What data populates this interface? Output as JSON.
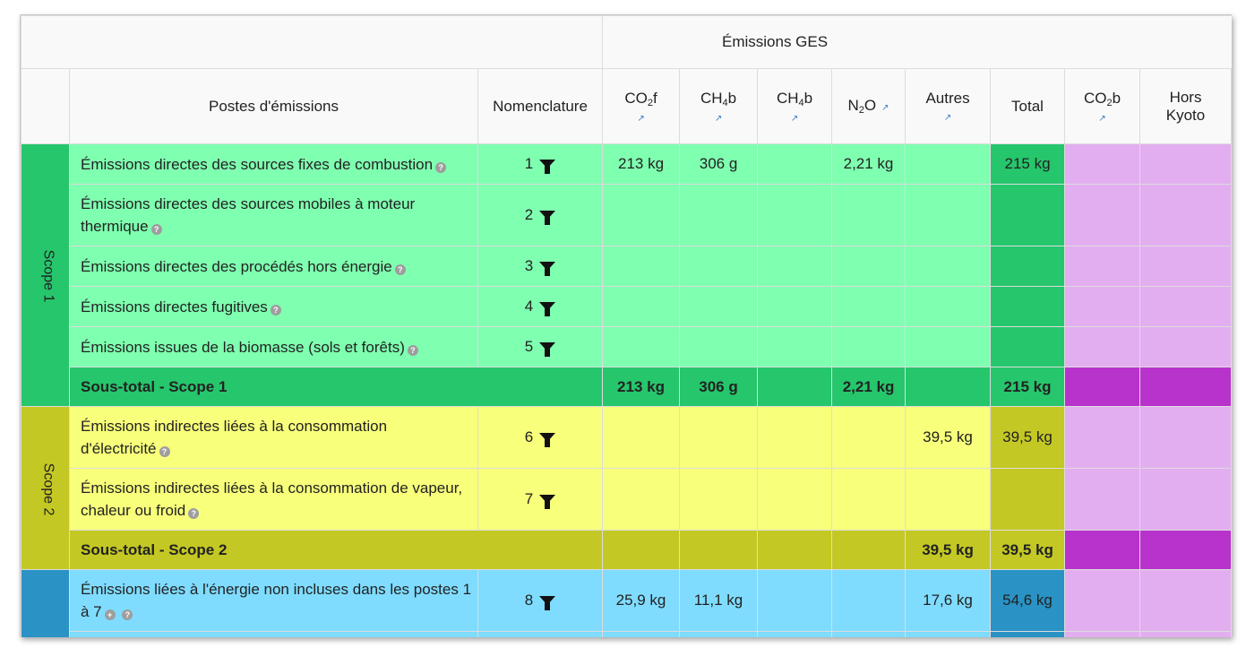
{
  "header": {
    "group_title": "Émissions GES",
    "col_postes": "Postes d'émissions",
    "col_nomenclature": "Nomenclature",
    "col_co2f": "CO",
    "col_co2f_sub": "2",
    "col_co2f_suffix": "f",
    "col_ch4b_a": "CH",
    "col_ch4b_a_sub": "4",
    "col_ch4b_a_suffix": "b",
    "col_ch4b_b": "CH",
    "col_ch4b_b_sub": "4",
    "col_ch4b_b_suffix": "b",
    "col_n2o": "N",
    "col_n2o_sub": "2",
    "col_n2o_suffix": "O",
    "col_autres": "Autres",
    "col_total": "Total",
    "col_co2b": "CO",
    "col_co2b_sub": "2",
    "col_co2b_suffix": "b",
    "col_hors_kyoto_1": "Hors",
    "col_hors_kyoto_2": "Kyoto",
    "ext_icon": "external-link-icon"
  },
  "scopes": {
    "scope1": "Scope 1",
    "scope2": "Scope 2"
  },
  "rows": [
    {
      "label": "Émissions directes des sources fixes de combustion",
      "num": "1",
      "co2f": "213 kg",
      "ch4b": "306 g",
      "n2o": "2,21 kg",
      "autres": "",
      "total": "215 kg"
    },
    {
      "label_1": "Émissions directes des sources mobiles à moteur",
      "label_2": "thermique",
      "num": "2"
    },
    {
      "label": "Émissions directes des procédés hors énergie",
      "num": "3"
    },
    {
      "label": "Émissions directes fugitives",
      "num": "4"
    },
    {
      "label": "Émissions issues de la biomasse (sols et forêts)",
      "num": "5"
    },
    {
      "label_1": "Émissions indirectes liées à la consommation",
      "label_2": "d'électricité",
      "num": "6",
      "autres": "39,5 kg",
      "total": "39,5 kg"
    },
    {
      "label_1": "Émissions indirectes liées à la consommation de vapeur,",
      "label_2": "chaleur ou froid",
      "num": "7"
    },
    {
      "label_1": "Émissions liées à l'énergie non incluses dans les postes 1",
      "label_2": "à 7",
      "num": "8",
      "co2f": "25,9 kg",
      "ch4b": "11,1 kg",
      "autres": "17,6 kg",
      "total": "54,6 kg"
    }
  ],
  "subtotals": {
    "s1": {
      "label": "Sous-total -  Scope 1",
      "co2f": "213 kg",
      "ch4b": "306 g",
      "n2o": "2,21 kg",
      "total": "215 kg"
    },
    "s2": {
      "label": "Sous-total -  Scope 2",
      "autres": "39,5 kg",
      "total": "39,5 kg"
    }
  },
  "colors": {
    "scope1_light": "#7fffb0",
    "scope1_dark": "#26c66c",
    "scope2_light": "#f8ff7a",
    "scope2_dark": "#c4c824",
    "scope3_light": "#7fdcff",
    "scope3_dark": "#2a92c4",
    "hors_light": "#e3aef0",
    "hors_dark": "#b832cc"
  }
}
